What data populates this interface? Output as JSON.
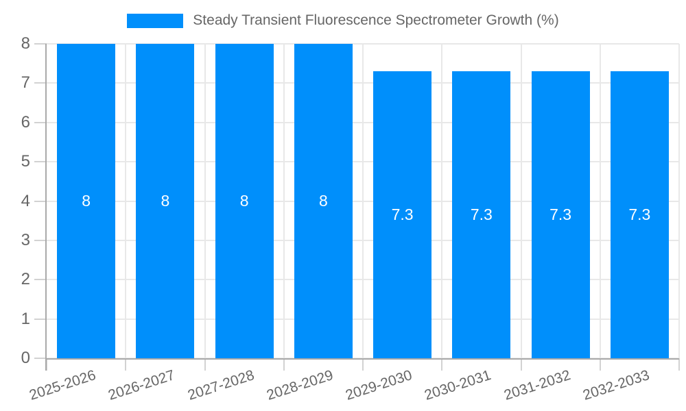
{
  "legend": {
    "label": "Steady Transient Fluorescence Spectrometer Growth (%)"
  },
  "chart_data": {
    "type": "bar",
    "title": "",
    "legend_entries": [
      "Steady Transient Fluorescence Spectrometer Growth (%)"
    ],
    "legend_position": "top",
    "categories": [
      "2025-2026",
      "2026-2027",
      "2027-2028",
      "2028-2029",
      "2029-2030",
      "2030-2031",
      "2031-2032",
      "2032-2033"
    ],
    "values": [
      8,
      8,
      8,
      8,
      7.3,
      7.3,
      7.3,
      7.3
    ],
    "value_labels": [
      "8",
      "8",
      "8",
      "8",
      "7.3",
      "7.3",
      "7.3",
      "7.3"
    ],
    "xlabel": "",
    "ylabel": "",
    "ylim": [
      0,
      8
    ],
    "yticks": [
      0,
      1,
      2,
      3,
      4,
      5,
      6,
      7,
      8
    ],
    "ytick_labels": [
      "0",
      "1",
      "2",
      "3",
      "4",
      "5",
      "6",
      "7",
      "8"
    ],
    "grid": "both",
    "colors": {
      "bar": "#008FFB",
      "value_label": "#ffffff",
      "axis_text": "#666666",
      "grid": "#e8e8e8",
      "axis_line": "#a9a9a9",
      "tick": "#d2d2d2"
    }
  }
}
